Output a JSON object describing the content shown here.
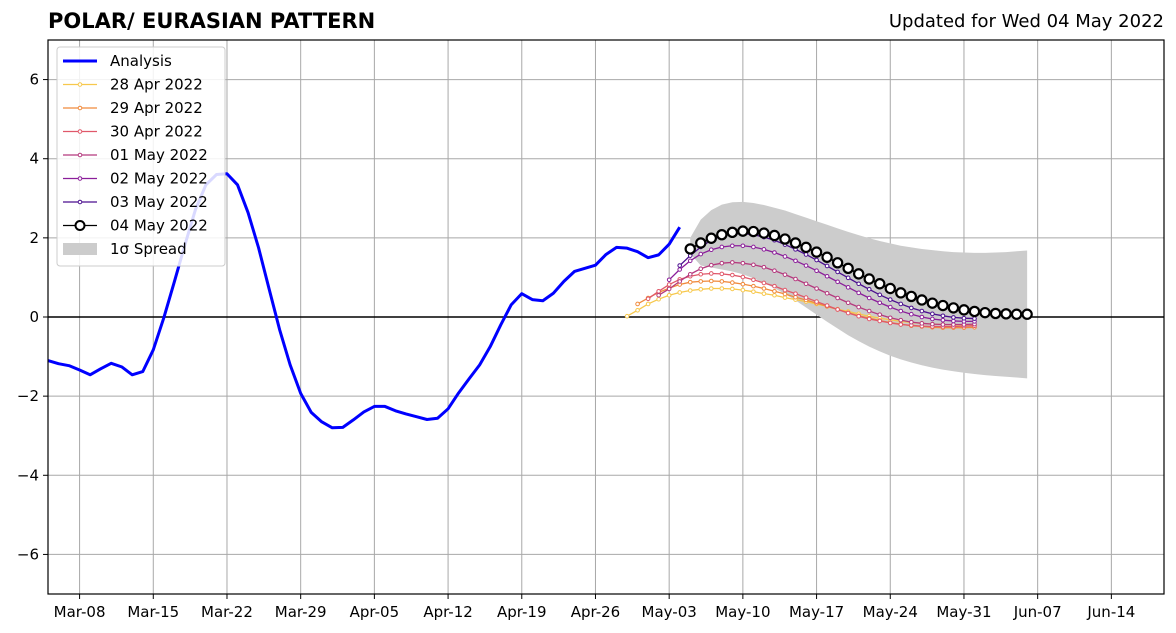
{
  "chart_data": {
    "type": "line",
    "title": "POLAR/ EURASIAN  PATTERN",
    "subtitle": "Updated for Wed 04 May 2022",
    "x_range": [
      "2022-03-05",
      "2022-06-19"
    ],
    "ylim": [
      -7,
      7
    ],
    "y_ticks": [
      -6,
      -4,
      -2,
      0,
      2,
      4,
      6
    ],
    "y_tick_labels": [
      "−6",
      "−4",
      "−2",
      "0",
      "2",
      "4",
      "6"
    ],
    "x_ticks": [
      {
        "date": "2022-03-08",
        "label": "Mar-08"
      },
      {
        "date": "2022-03-15",
        "label": "Mar-15"
      },
      {
        "date": "2022-03-22",
        "label": "Mar-22"
      },
      {
        "date": "2022-03-29",
        "label": "Mar-29"
      },
      {
        "date": "2022-04-05",
        "label": "Apr-05"
      },
      {
        "date": "2022-04-12",
        "label": "Apr-12"
      },
      {
        "date": "2022-04-19",
        "label": "Apr-19"
      },
      {
        "date": "2022-04-26",
        "label": "Apr-26"
      },
      {
        "date": "2022-05-03",
        "label": "May-03"
      },
      {
        "date": "2022-05-10",
        "label": "May-10"
      },
      {
        "date": "2022-05-17",
        "label": "May-17"
      },
      {
        "date": "2022-05-24",
        "label": "May-24"
      },
      {
        "date": "2022-05-31",
        "label": "May-31"
      },
      {
        "date": "2022-06-07",
        "label": "Jun-07"
      },
      {
        "date": "2022-06-14",
        "label": "Jun-14"
      }
    ],
    "grid": true,
    "legend_position": "top-left",
    "analysis": {
      "name": "Analysis",
      "color": "#0000ff",
      "start": "2022-03-05",
      "values": [
        -1.1,
        -1.18,
        -1.23,
        -1.34,
        -1.46,
        -1.31,
        -1.17,
        -1.26,
        -1.46,
        -1.38,
        -0.83,
        -0.02,
        0.89,
        1.82,
        2.71,
        3.34,
        3.6,
        3.62,
        3.34,
        2.64,
        1.75,
        0.71,
        -0.32,
        -1.21,
        -1.93,
        -2.41,
        -2.65,
        -2.8,
        -2.79,
        -2.6,
        -2.4,
        -2.26,
        -2.26,
        -2.37,
        -2.45,
        -2.52,
        -2.59,
        -2.56,
        -2.32,
        -1.92,
        -1.56,
        -1.21,
        -0.75,
        -0.2,
        0.31,
        0.59,
        0.44,
        0.41,
        0.6,
        0.9,
        1.15,
        1.23,
        1.31,
        1.58,
        1.76,
        1.74,
        1.65,
        1.5,
        1.57,
        1.84,
        2.27
      ]
    },
    "forecasts": [
      {
        "name": "28 Apr 2022",
        "color": "#f7c84c",
        "start": "2022-04-29",
        "values": [
          0.02,
          0.17,
          0.33,
          0.45,
          0.55,
          0.62,
          0.67,
          0.7,
          0.72,
          0.72,
          0.71,
          0.68,
          0.64,
          0.59,
          0.55,
          0.49,
          0.44,
          0.39,
          0.33,
          0.27,
          0.2,
          0.14,
          0.08,
          0.02,
          -0.03,
          -0.07,
          -0.11,
          -0.14,
          -0.16,
          -0.18,
          -0.19,
          -0.2,
          -0.21,
          -0.21
        ]
      },
      {
        "name": "29 Apr 2022",
        "color": "#f08a3c",
        "start": "2022-04-30",
        "values": [
          0.33,
          0.48,
          0.62,
          0.73,
          0.82,
          0.88,
          0.9,
          0.91,
          0.9,
          0.87,
          0.83,
          0.78,
          0.72,
          0.65,
          0.58,
          0.5,
          0.43,
          0.35,
          0.27,
          0.19,
          0.11,
          0.03,
          -0.03,
          -0.09,
          -0.14,
          -0.18,
          -0.22,
          -0.24,
          -0.26,
          -0.27,
          -0.27,
          -0.27,
          -0.26
        ]
      },
      {
        "name": "30 Apr 2022",
        "color": "#e0586a",
        "start": "2022-05-01",
        "values": [
          0.46,
          0.65,
          0.82,
          0.95,
          1.03,
          1.08,
          1.1,
          1.09,
          1.06,
          1.01,
          0.94,
          0.86,
          0.78,
          0.68,
          0.59,
          0.49,
          0.39,
          0.29,
          0.19,
          0.1,
          0.02,
          -0.05,
          -0.1,
          -0.15,
          -0.19,
          -0.21,
          -0.23,
          -0.24,
          -0.24,
          -0.24,
          -0.23,
          -0.22
        ]
      },
      {
        "name": "01 May 2022",
        "color": "#b5397e",
        "start": "2022-05-02",
        "values": [
          0.55,
          0.71,
          0.9,
          1.08,
          1.22,
          1.31,
          1.36,
          1.38,
          1.36,
          1.32,
          1.26,
          1.17,
          1.07,
          0.96,
          0.84,
          0.72,
          0.6,
          0.48,
          0.36,
          0.25,
          0.15,
          0.06,
          -0.02,
          -0.08,
          -0.13,
          -0.16,
          -0.18,
          -0.19,
          -0.19,
          -0.19,
          -0.18
        ]
      },
      {
        "name": "02 May 2022",
        "color": "#8b1e9a",
        "start": "2022-05-03",
        "values": [
          0.94,
          1.2,
          1.42,
          1.59,
          1.7,
          1.77,
          1.8,
          1.8,
          1.77,
          1.71,
          1.63,
          1.53,
          1.42,
          1.3,
          1.17,
          1.03,
          0.89,
          0.75,
          0.61,
          0.48,
          0.36,
          0.25,
          0.15,
          0.07,
          0.0,
          -0.05,
          -0.08,
          -0.1,
          -0.11,
          -0.11
        ]
      },
      {
        "name": "03 May 2022",
        "color": "#4b0f8f",
        "start": "2022-05-04",
        "values": [
          1.3,
          1.55,
          1.77,
          1.94,
          2.05,
          2.1,
          2.11,
          2.08,
          2.02,
          1.94,
          1.83,
          1.71,
          1.58,
          1.44,
          1.29,
          1.14,
          0.99,
          0.84,
          0.7,
          0.56,
          0.44,
          0.33,
          0.23,
          0.15,
          0.08,
          0.03,
          -0.01,
          -0.03,
          -0.04
        ]
      }
    ],
    "current": {
      "name": "04 May 2022",
      "color": "#000000",
      "start": "2022-05-05",
      "values": [
        1.72,
        1.87,
        1.99,
        2.08,
        2.14,
        2.17,
        2.16,
        2.12,
        2.06,
        1.97,
        1.87,
        1.76,
        1.64,
        1.51,
        1.37,
        1.23,
        1.09,
        0.96,
        0.84,
        0.72,
        0.61,
        0.52,
        0.43,
        0.35,
        0.29,
        0.23,
        0.18,
        0.14,
        0.11,
        0.09,
        0.08,
        0.07,
        0.07
      ]
    },
    "spread": {
      "name": "1σ Spread",
      "color": "#cccccc",
      "start": "2022-05-05",
      "upper": [
        2.0,
        2.46,
        2.7,
        2.84,
        2.9,
        2.91,
        2.88,
        2.83,
        2.76,
        2.69,
        2.6,
        2.51,
        2.42,
        2.33,
        2.24,
        2.15,
        2.07,
        1.99,
        1.92,
        1.86,
        1.8,
        1.76,
        1.72,
        1.69,
        1.66,
        1.64,
        1.63,
        1.62,
        1.62,
        1.63,
        1.64,
        1.66,
        1.68
      ],
      "lower": [
        1.6,
        1.3,
        1.25,
        1.2,
        1.15,
        1.08,
        0.98,
        0.86,
        0.73,
        0.58,
        0.42,
        0.24,
        0.06,
        -0.12,
        -0.29,
        -0.46,
        -0.61,
        -0.75,
        -0.87,
        -0.98,
        -1.07,
        -1.15,
        -1.22,
        -1.28,
        -1.33,
        -1.37,
        -1.41,
        -1.44,
        -1.47,
        -1.49,
        -1.51,
        -1.53,
        -1.55
      ]
    },
    "legend": [
      {
        "label": "Analysis",
        "color": "#0000ff",
        "style": "thick-line"
      },
      {
        "label": "28 Apr 2022",
        "color": "#f7c84c",
        "style": "line-dot"
      },
      {
        "label": "29 Apr 2022",
        "color": "#f08a3c",
        "style": "line-dot"
      },
      {
        "label": "30 Apr 2022",
        "color": "#e0586a",
        "style": "line-dot"
      },
      {
        "label": "01 May 2022",
        "color": "#b5397e",
        "style": "line-dot"
      },
      {
        "label": "02 May 2022",
        "color": "#8b1e9a",
        "style": "line-dot"
      },
      {
        "label": "03 May 2022",
        "color": "#4b0f8f",
        "style": "line-dot"
      },
      {
        "label": "04 May 2022",
        "color": "#000000",
        "style": "line-circle"
      },
      {
        "label": "1σ Spread",
        "color": "#cccccc",
        "style": "patch"
      }
    ]
  }
}
